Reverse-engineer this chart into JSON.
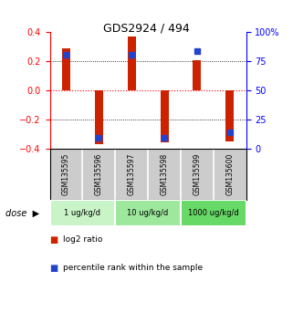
{
  "title": "GDS2924 / 494",
  "samples": [
    "GSM135595",
    "GSM135596",
    "GSM135597",
    "GSM135598",
    "GSM135599",
    "GSM135600"
  ],
  "log2_ratios": [
    0.29,
    -0.37,
    0.37,
    -0.36,
    0.21,
    -0.35
  ],
  "percentiles": [
    81,
    9,
    81,
    9,
    84,
    14
  ],
  "doses": [
    {
      "label": "1 ug/kg/d",
      "samples": [
        0,
        1
      ],
      "color": "#c8f4c8"
    },
    {
      "label": "10 ug/kg/d",
      "samples": [
        2,
        3
      ],
      "color": "#9de89d"
    },
    {
      "label": "1000 ug/kg/d",
      "samples": [
        4,
        5
      ],
      "color": "#66d966"
    }
  ],
  "ylim_left": [
    -0.4,
    0.4
  ],
  "ylim_right": [
    0,
    100
  ],
  "yticks_left": [
    -0.4,
    -0.2,
    0.0,
    0.2,
    0.4
  ],
  "yticks_right": [
    0,
    25,
    50,
    75,
    100
  ],
  "bar_color_red": "#cc2200",
  "bar_color_blue": "#2244cc",
  "bar_width": 0.25,
  "legend_red": "log2 ratio",
  "legend_blue": "percentile rank within the sample",
  "dose_label": "dose"
}
